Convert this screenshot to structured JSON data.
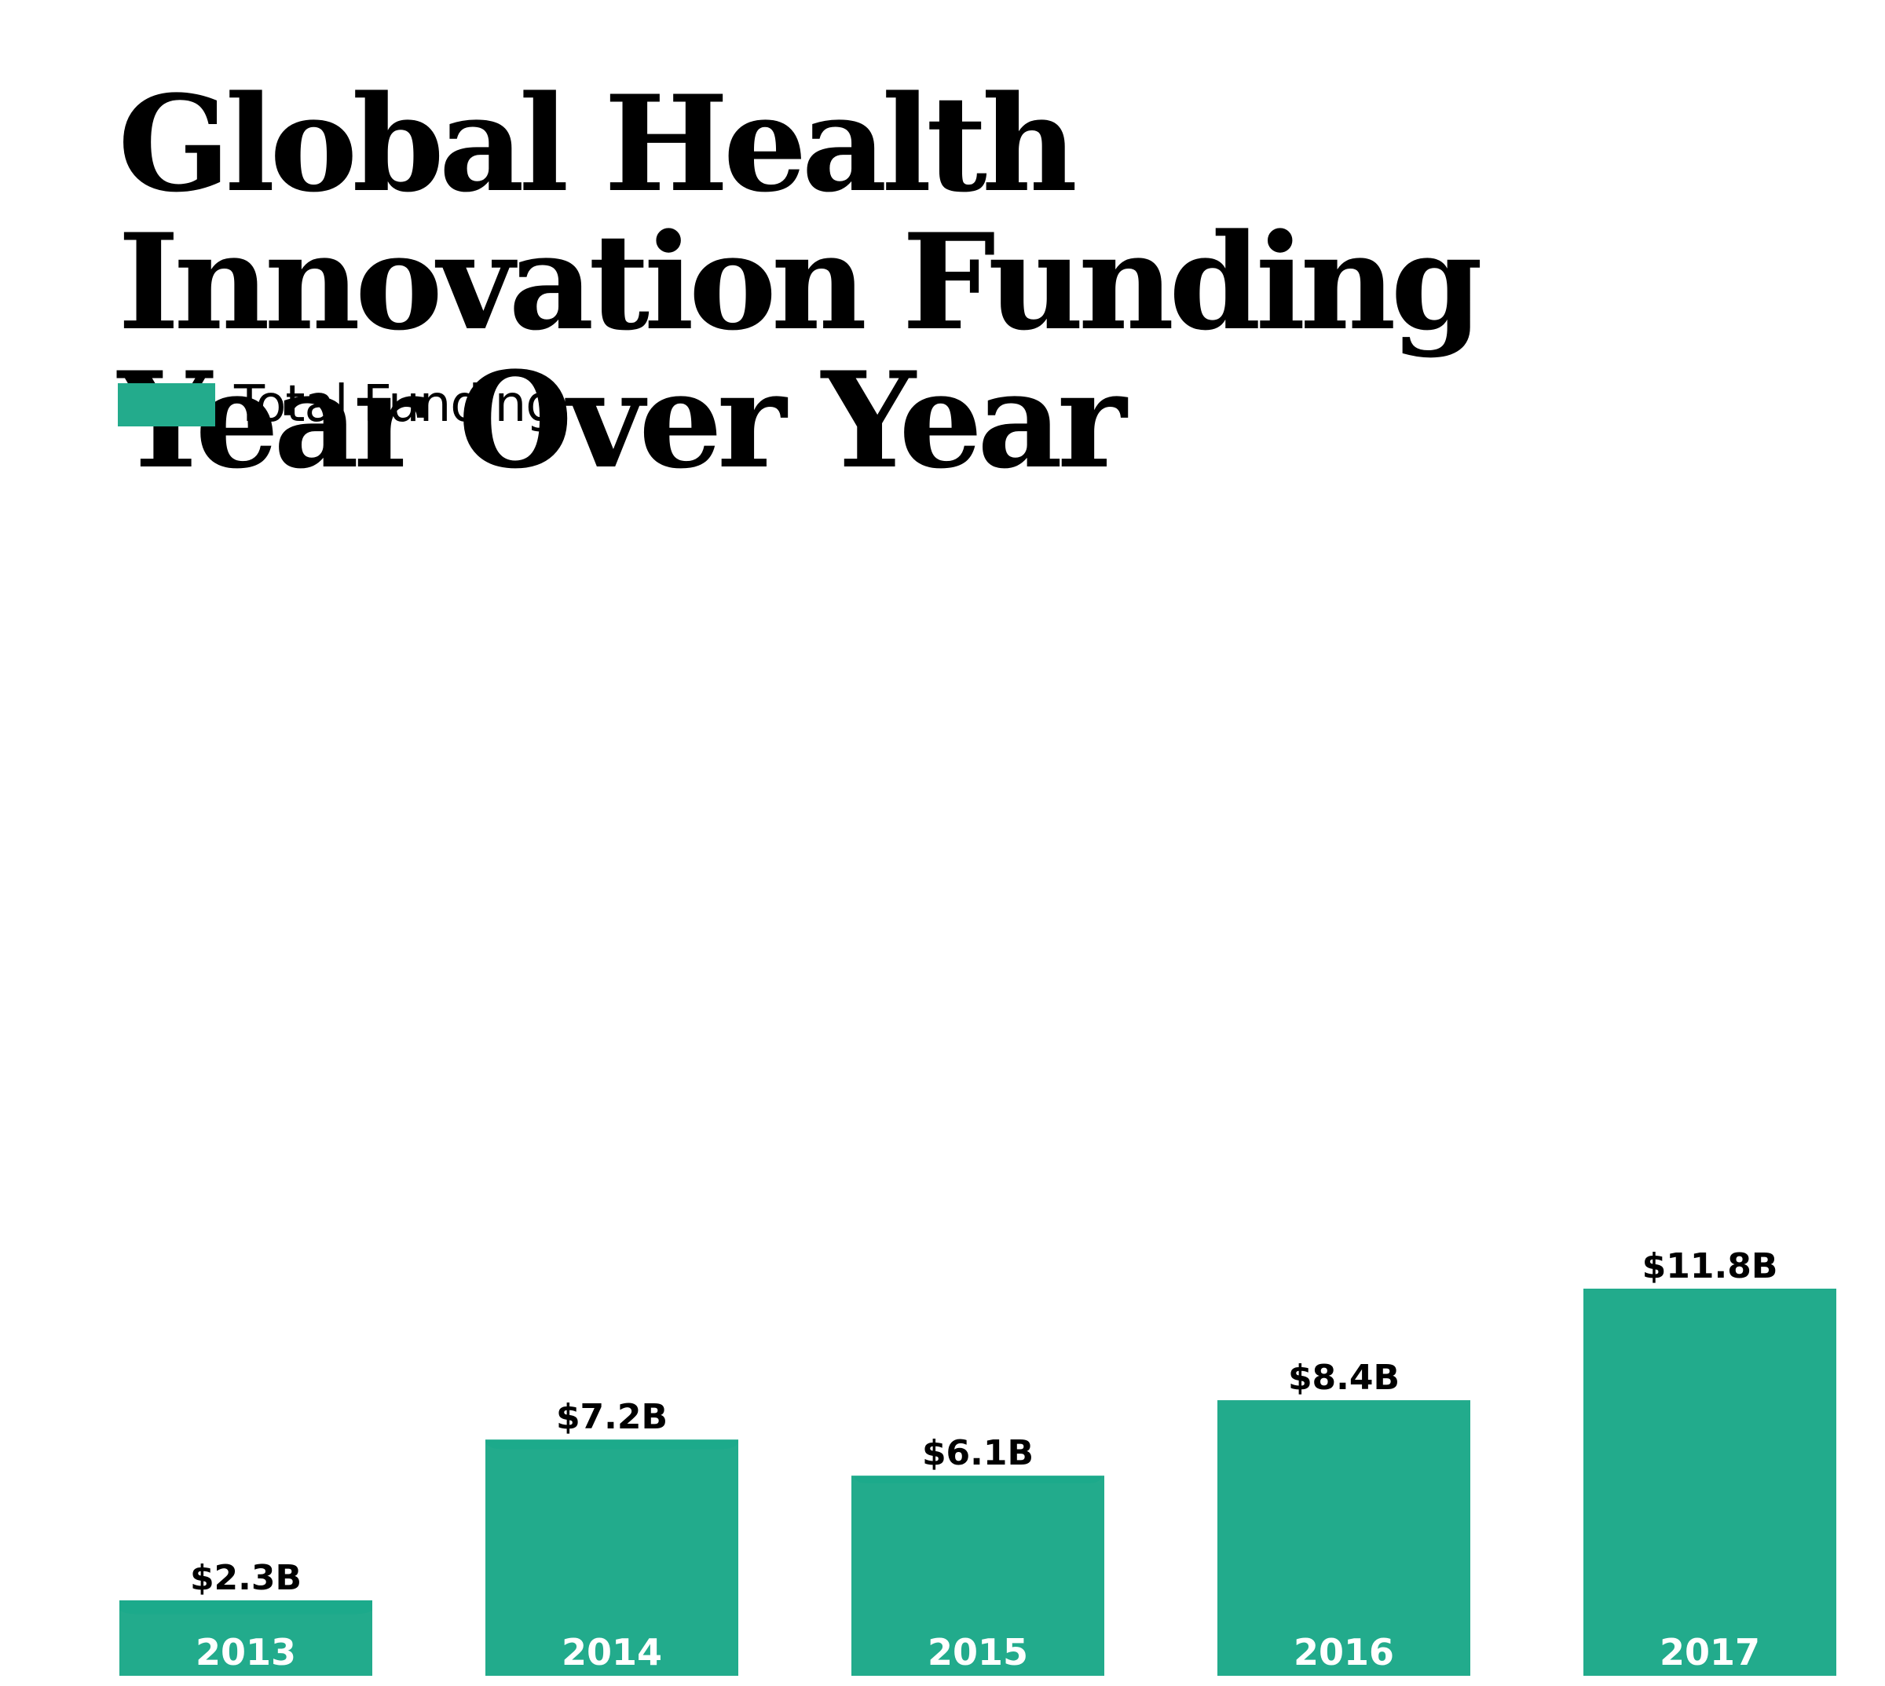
{
  "colors": {
    "bar": "#23AB8C",
    "bar_shadow": "#1a8a70",
    "text": "#000000",
    "year_text": "#ffffff"
  },
  "chart_data": {
    "type": "bar",
    "title": "Global Health Innovation Funding Year Over Year",
    "legend": [
      "Total Funding"
    ],
    "legend_position": "top-left",
    "categories": [
      "2013",
      "2014",
      "2015",
      "2016",
      "2017"
    ],
    "series": [
      {
        "name": "Total Funding",
        "values": [
          2.3,
          7.2,
          6.1,
          8.4,
          11.8
        ]
      }
    ],
    "value_labels": [
      "$2.3B",
      "$7.2B",
      "$6.1B",
      "$8.4B",
      "$11.8B"
    ],
    "ylim": [
      0,
      11.8
    ],
    "grid": false
  }
}
